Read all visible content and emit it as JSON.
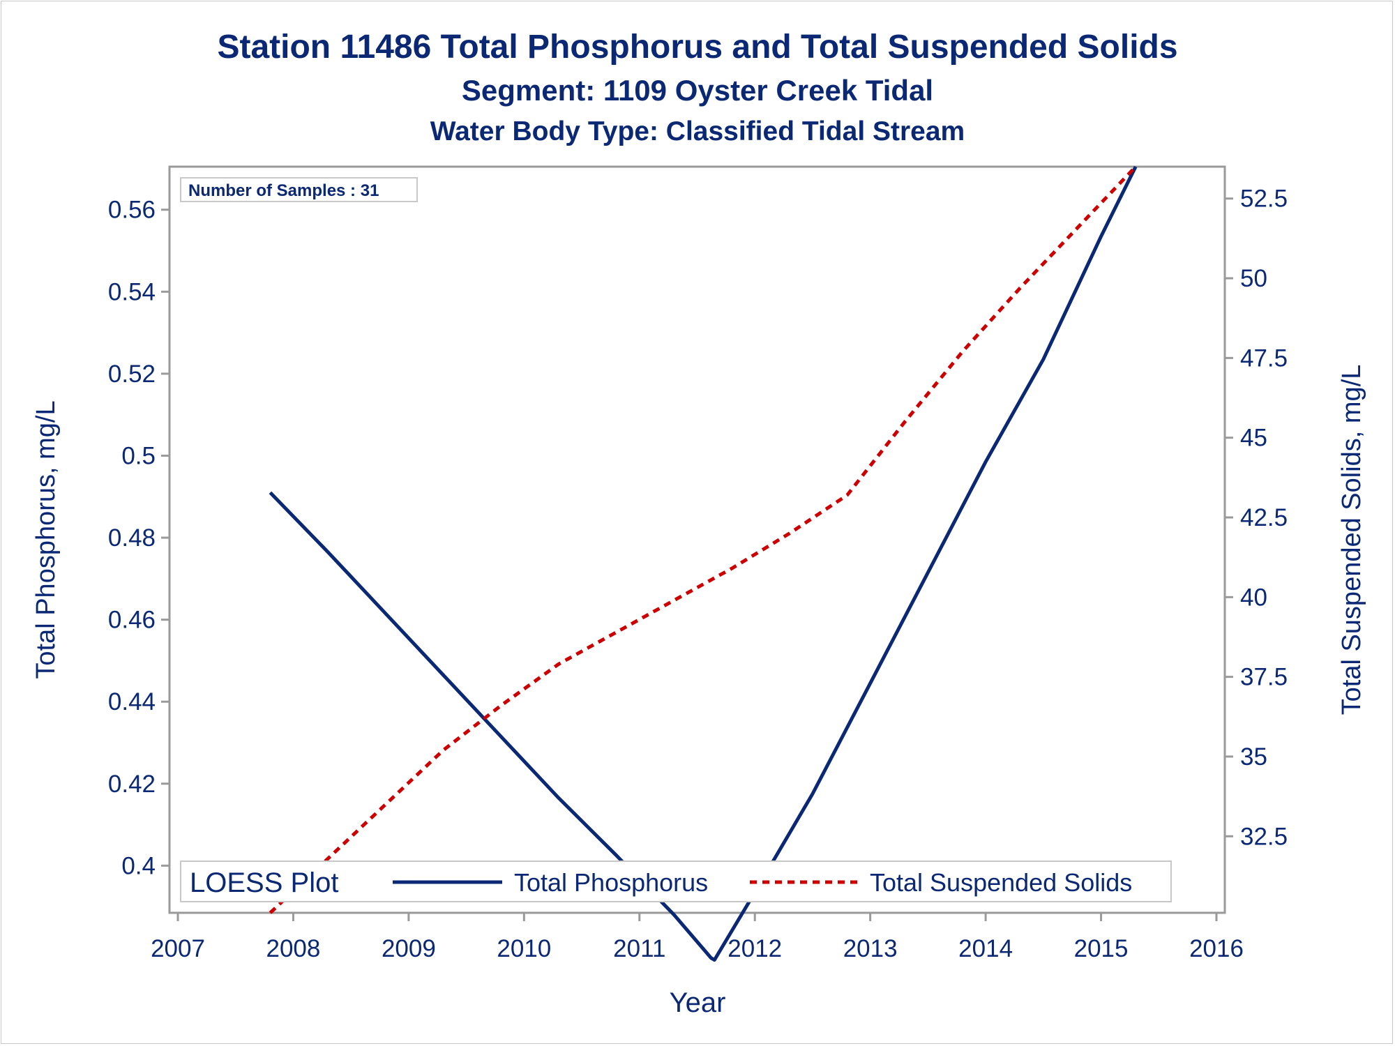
{
  "titles": {
    "line1": "Station 11486  Total Phosphorus and Total Suspended Solids",
    "line2": "Segment: 1109  Oyster Creek Tidal",
    "line3": "Water Body Type: Classified Tidal Stream"
  },
  "colors": {
    "text": "#0b2874",
    "axis": "#9a9a9a",
    "phosphorus_line": "#0b2874",
    "tss_line": "#cc0000"
  },
  "chart_data": {
    "type": "line",
    "inset_label": "Number of Samples : 31",
    "xlabel": "Year",
    "ylabel_left": "Total Phosphorus, mg/L",
    "ylabel_right": "Total Suspended Solids, mg/L",
    "xlim": [
      2007,
      2016
    ],
    "x_ticks": [
      2007,
      2008,
      2009,
      2010,
      2011,
      2012,
      2013,
      2014,
      2015,
      2016
    ],
    "ylim_left": [
      0.3885,
      0.5705
    ],
    "y_ticks_left": [
      0.4,
      0.42,
      0.44,
      0.46,
      0.48,
      0.5,
      0.52,
      0.54,
      0.56
    ],
    "ylim_right": [
      30.1,
      53.5
    ],
    "y_ticks_right": [
      32.5,
      35,
      37.5,
      40,
      42.5,
      45,
      47.5,
      50,
      52.5
    ],
    "grid": false,
    "legend": {
      "title": "LOESS Plot",
      "placement": "bottom-inside"
    },
    "series": [
      {
        "name": "Total Phosphorus",
        "axis": "left",
        "style": "solid",
        "color": "#0b2874",
        "x": [
          2007.8,
          2008.3,
          2008.8,
          2009.3,
          2009.8,
          2010.3,
          2010.8,
          2011.3,
          2011.62,
          2011.65,
          2012.0,
          2012.5,
          2013.0,
          2013.5,
          2014.0,
          2014.5,
          2015.0,
          2015.3
        ],
        "y": [
          0.491,
          0.4765,
          0.4615,
          0.4465,
          0.4315,
          0.4165,
          0.4025,
          0.388,
          0.3775,
          0.377,
          0.3935,
          0.4175,
          0.4445,
          0.4715,
          0.4985,
          0.5235,
          0.5535,
          0.5705
        ]
      },
      {
        "name": "Total Suspended Solids",
        "axis": "right",
        "style": "dashed",
        "color": "#cc0000",
        "x": [
          2007.8,
          2008.3,
          2008.8,
          2009.3,
          2009.8,
          2010.3,
          2010.8,
          2011.3,
          2011.8,
          2012.3,
          2012.8,
          2013.3,
          2013.8,
          2014.3,
          2014.8,
          2015.3
        ],
        "y": [
          30.1,
          31.8,
          33.5,
          35.2,
          36.6,
          37.9,
          38.9,
          39.9,
          40.9,
          42.0,
          43.2,
          45.5,
          47.7,
          49.7,
          51.6,
          53.5
        ]
      }
    ]
  }
}
